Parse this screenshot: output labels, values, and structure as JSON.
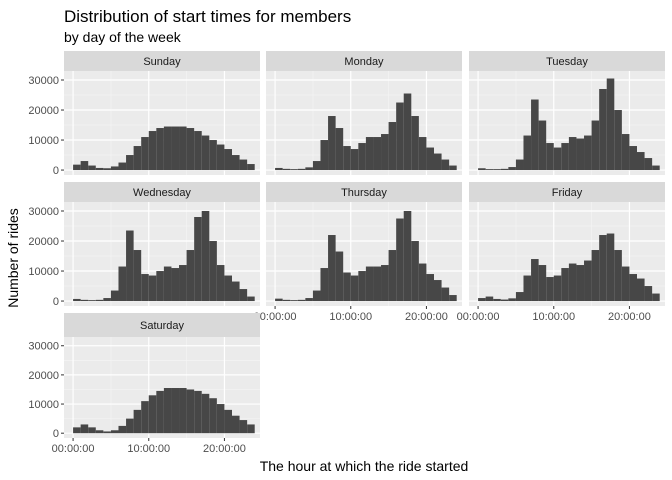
{
  "chart_data": {
    "type": "bar",
    "subtype": "faceted-histogram",
    "title": "Distribution of start times for members",
    "subtitle": "by day of the week",
    "xlabel": "The hour at which the ride started",
    "ylabel": "Number of rides",
    "x_bin_centers_hours": [
      0.5,
      1.5,
      2.5,
      3.5,
      4.5,
      5.5,
      6.5,
      7.5,
      8.5,
      9.5,
      10.5,
      11.5,
      12.5,
      13.5,
      14.5,
      15.5,
      16.5,
      17.5,
      18.5,
      19.5,
      20.5,
      21.5,
      22.5,
      23.5
    ],
    "x_ticks": [
      {
        "hour": 0,
        "label": "00:00:00"
      },
      {
        "hour": 10,
        "label": "10:00:00"
      },
      {
        "hour": 20,
        "label": "20:00:00"
      }
    ],
    "y_ticks": [
      0,
      10000,
      20000,
      30000
    ],
    "ylim": [
      0,
      33000
    ],
    "bar_color": "#474747",
    "panel_background": "#ebebeb",
    "strip_background": "#d9d9d9",
    "grid": true,
    "panels": [
      {
        "name": "Sunday",
        "values": [
          1800,
          3000,
          1500,
          700,
          600,
          1200,
          2500,
          5000,
          8000,
          11000,
          13000,
          14000,
          14500,
          14500,
          14500,
          14000,
          13000,
          11500,
          10000,
          8500,
          7000,
          5000,
          3500,
          2000
        ]
      },
      {
        "name": "Monday",
        "values": [
          700,
          400,
          300,
          400,
          900,
          3000,
          10000,
          18000,
          14000,
          8000,
          7000,
          9000,
          11000,
          11000,
          12000,
          16000,
          22500,
          25500,
          18000,
          11000,
          7500,
          5500,
          3500,
          1500
        ]
      },
      {
        "name": "Tuesday",
        "values": [
          600,
          300,
          300,
          400,
          1000,
          3500,
          11500,
          23500,
          16500,
          9000,
          7500,
          9000,
          11000,
          10500,
          11500,
          16500,
          27000,
          30500,
          20000,
          12000,
          8000,
          6000,
          4000,
          1500
        ]
      },
      {
        "name": "Wednesday",
        "values": [
          700,
          400,
          300,
          400,
          1000,
          3500,
          11500,
          23500,
          17000,
          9000,
          8500,
          10000,
          11500,
          11000,
          12000,
          17000,
          28000,
          30000,
          20000,
          12000,
          8500,
          6500,
          4000,
          1500
        ]
      },
      {
        "name": "Thursday",
        "values": [
          800,
          400,
          300,
          400,
          1000,
          3500,
          11000,
          22000,
          16500,
          9500,
          8500,
          10000,
          11500,
          11500,
          12000,
          17000,
          27500,
          30000,
          20000,
          12500,
          9000,
          7000,
          4500,
          2000
        ]
      },
      {
        "name": "Friday",
        "values": [
          1000,
          1500,
          700,
          500,
          900,
          3000,
          8500,
          14000,
          12000,
          8000,
          8500,
          11000,
          12500,
          12000,
          13500,
          17000,
          22000,
          22500,
          17000,
          11500,
          9000,
          7500,
          5000,
          2500
        ]
      },
      {
        "name": "Saturday",
        "values": [
          2000,
          3000,
          2000,
          1000,
          600,
          1000,
          2500,
          5000,
          8000,
          11000,
          13000,
          14500,
          15500,
          15500,
          15500,
          15000,
          14500,
          13500,
          12000,
          10000,
          8000,
          6000,
          4500,
          3000
        ]
      }
    ]
  }
}
